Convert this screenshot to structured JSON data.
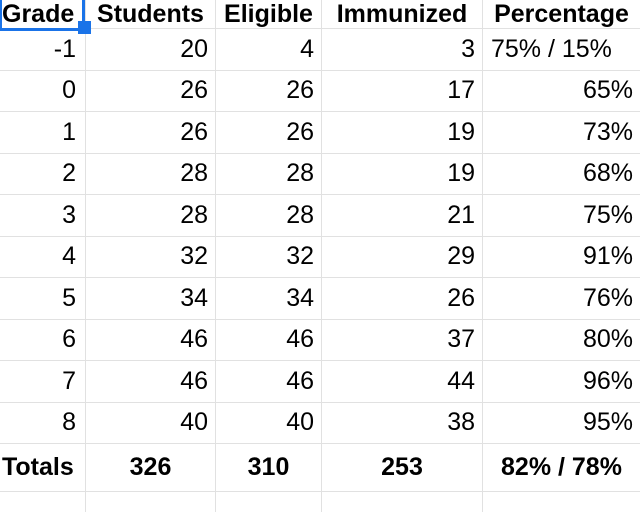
{
  "sheet": {
    "app": "spreadsheet",
    "selected_cell_value": "Grade",
    "colors": {
      "selection_blue": "#1a73e8",
      "gridline_gray": "#e1e1e1",
      "text": "#000000",
      "background": "#ffffff"
    },
    "headers": {
      "grade": "Grade",
      "students": "Students",
      "eligible": "Eligible",
      "immunized": "Immunized",
      "percentage": "Percentage"
    },
    "rows": [
      {
        "grade": "-1",
        "students": "20",
        "eligible": "4",
        "immunized": "3",
        "percentage": "75% / 15%"
      },
      {
        "grade": "0",
        "students": "26",
        "eligible": "26",
        "immunized": "17",
        "percentage": "65%"
      },
      {
        "grade": "1",
        "students": "26",
        "eligible": "26",
        "immunized": "19",
        "percentage": "73%"
      },
      {
        "grade": "2",
        "students": "28",
        "eligible": "28",
        "immunized": "19",
        "percentage": "68%"
      },
      {
        "grade": "3",
        "students": "28",
        "eligible": "28",
        "immunized": "21",
        "percentage": "75%"
      },
      {
        "grade": "4",
        "students": "32",
        "eligible": "32",
        "immunized": "29",
        "percentage": "91%"
      },
      {
        "grade": "5",
        "students": "34",
        "eligible": "34",
        "immunized": "26",
        "percentage": "76%"
      },
      {
        "grade": "6",
        "students": "46",
        "eligible": "46",
        "immunized": "37",
        "percentage": "80%"
      },
      {
        "grade": "7",
        "students": "46",
        "eligible": "46",
        "immunized": "44",
        "percentage": "96%"
      },
      {
        "grade": "8",
        "students": "40",
        "eligible": "40",
        "immunized": "38",
        "percentage": "95%"
      }
    ],
    "totals": {
      "label": "Totals",
      "students": "326",
      "eligible": "310",
      "immunized": "253",
      "percentage": "82% / 78%"
    }
  }
}
